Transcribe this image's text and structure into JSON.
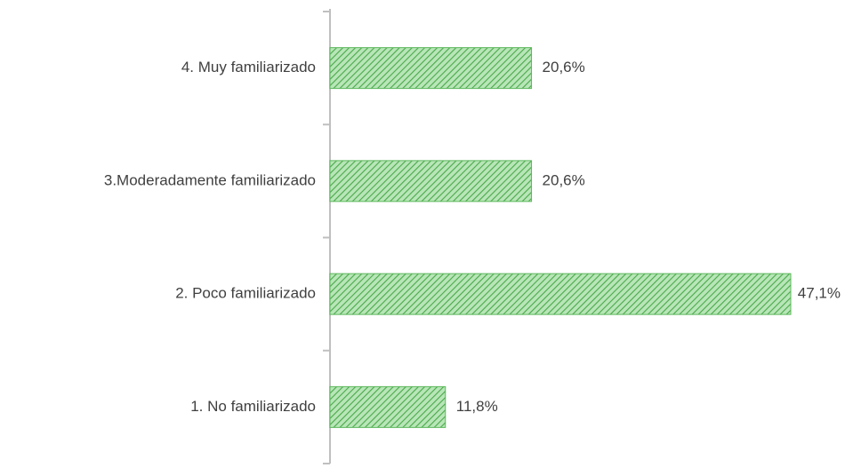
{
  "chart_data": {
    "type": "bar",
    "orientation": "horizontal",
    "categories": [
      "1. No familiarizado",
      "2. Poco familiarizado",
      "3.Moderadamente familiarizado",
      "4. Muy familiarizado"
    ],
    "values": [
      11.8,
      47.1,
      20.6,
      20.6
    ],
    "value_labels": [
      "11,8%",
      "47,1%",
      "20,6%",
      "20,6%"
    ],
    "color": "#5cb85c"
  }
}
